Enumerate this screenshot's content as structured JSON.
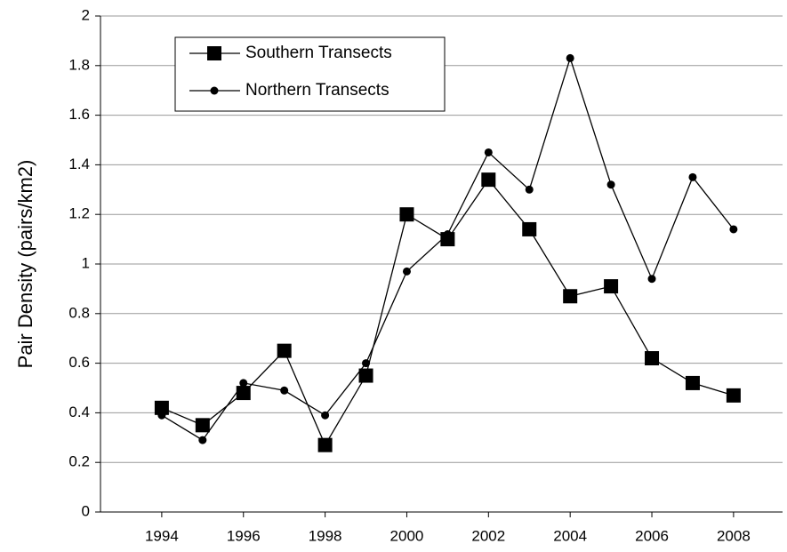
{
  "chart_data": {
    "type": "line",
    "y_label": "Pair Density (pairs/km2)",
    "x": [
      1994,
      1995,
      1996,
      1997,
      1998,
      1999,
      2000,
      2001,
      2002,
      2003,
      2004,
      2005,
      2006,
      2007,
      2008
    ],
    "series": [
      {
        "name": "Southern Transects",
        "color": "#000000",
        "marker": "square",
        "values": [
          0.42,
          0.35,
          0.48,
          0.65,
          0.27,
          0.55,
          1.2,
          1.1,
          1.34,
          1.14,
          0.87,
          0.91,
          0.62,
          0.52,
          0.47
        ]
      },
      {
        "name": "Northern Transects",
        "color": "#000000",
        "marker": "circle",
        "values": [
          0.39,
          0.29,
          0.52,
          0.49,
          0.39,
          0.6,
          0.97,
          1.12,
          1.45,
          1.3,
          1.83,
          1.32,
          0.94,
          1.35,
          1.14
        ]
      }
    ],
    "xlim": [
      1992.5,
      2009.2
    ],
    "xticks": [
      1994,
      1996,
      1998,
      2000,
      2002,
      2004,
      2006,
      2008
    ],
    "ylim": [
      0,
      2
    ],
    "yticks": [
      0,
      0.2,
      0.4,
      0.6,
      0.8,
      1,
      1.2,
      1.4,
      1.6,
      1.8,
      2
    ],
    "grid": true,
    "legend": "top-left"
  }
}
